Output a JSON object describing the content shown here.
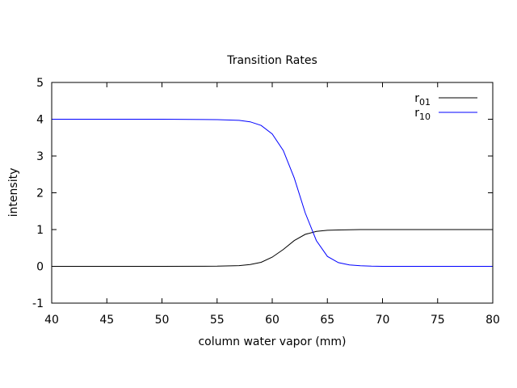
{
  "chart_data": {
    "type": "line",
    "title": "Transition Rates",
    "xlabel": "column water vapor (mm)",
    "ylabel": "intensity",
    "xlim": [
      40,
      80
    ],
    "ylim": [
      -1,
      5
    ],
    "xticks": [
      40,
      45,
      50,
      55,
      60,
      65,
      70,
      75,
      80
    ],
    "yticks": [
      -1,
      0,
      1,
      2,
      3,
      4,
      5
    ],
    "grid": false,
    "legend_position": "top-right",
    "series": [
      {
        "name": "r",
        "name_subscript": "01",
        "color": "#000000",
        "x": [
          40,
          50,
          55,
          57,
          58,
          59,
          60,
          61,
          62,
          63,
          64,
          65,
          66,
          67,
          68,
          70,
          75,
          80
        ],
        "y": [
          0,
          0,
          0.005,
          0.02,
          0.05,
          0.11,
          0.25,
          0.46,
          0.7,
          0.87,
          0.95,
          0.98,
          0.99,
          0.995,
          1.0,
          1.0,
          1.0,
          1.0
        ]
      },
      {
        "name": "r",
        "name_subscript": "10",
        "color": "#0000ff",
        "x": [
          40,
          50,
          55,
          57,
          58,
          59,
          60,
          61,
          62,
          63,
          64,
          65,
          66,
          67,
          68,
          69,
          70,
          75,
          80
        ],
        "y": [
          4,
          4,
          3.99,
          3.97,
          3.93,
          3.83,
          3.6,
          3.15,
          2.4,
          1.45,
          0.7,
          0.27,
          0.1,
          0.04,
          0.015,
          0.005,
          0,
          0,
          0
        ]
      }
    ]
  }
}
